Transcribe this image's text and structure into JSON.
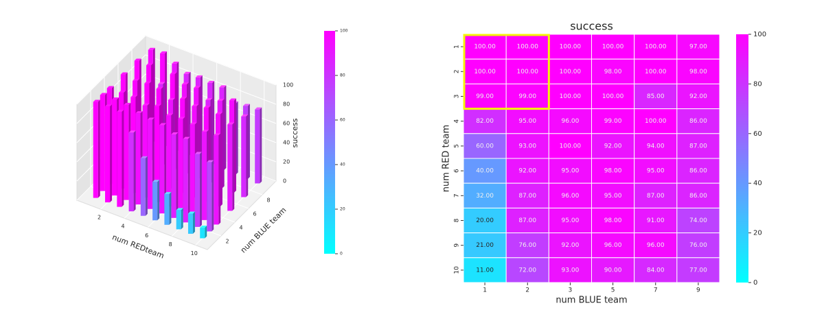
{
  "chart_data": [
    {
      "type": "bar3d",
      "x": [
        1,
        2,
        3,
        4,
        5,
        6,
        7,
        8,
        9,
        10
      ],
      "y": [
        1,
        2,
        3,
        5,
        7,
        9
      ],
      "values": [
        [
          100,
          100,
          100,
          100,
          100,
          97
        ],
        [
          100,
          100,
          100,
          98,
          100,
          98
        ],
        [
          99,
          99,
          100,
          100,
          85,
          92
        ],
        [
          82,
          95,
          96,
          99,
          100,
          86
        ],
        [
          60,
          93,
          100,
          92,
          94,
          87
        ],
        [
          40,
          92,
          95,
          98,
          95,
          86
        ],
        [
          32,
          87,
          96,
          95,
          87,
          86
        ],
        [
          20,
          87,
          95,
          98,
          91,
          74
        ],
        [
          21,
          76,
          92,
          96,
          96,
          76
        ],
        [
          11,
          72,
          93,
          90,
          84,
          77
        ]
      ],
      "xlabel": "num REDteam",
      "ylabel": "num BLUE team",
      "zlabel": "success",
      "xlim": [
        0,
        11
      ],
      "ylim": [
        0,
        10
      ],
      "zlim": [
        0,
        100
      ],
      "xticks": [
        2,
        4,
        6,
        8,
        10
      ],
      "yticks": [
        2,
        4,
        6,
        8
      ],
      "zticks": [
        0,
        20,
        40,
        60,
        80,
        100
      ],
      "cmap": "cool",
      "colorbar": {
        "lim": [
          0,
          100
        ],
        "ticks": [
          0,
          20,
          40,
          60,
          80,
          100
        ]
      }
    },
    {
      "type": "heatmap",
      "title": "success",
      "x": [
        1,
        2,
        3,
        5,
        7,
        9
      ],
      "y": [
        1,
        2,
        3,
        4,
        5,
        6,
        7,
        8,
        9,
        10
      ],
      "values": [
        [
          100,
          100,
          100,
          100,
          100,
          97
        ],
        [
          100,
          100,
          100,
          98,
          100,
          98
        ],
        [
          99,
          99,
          100,
          100,
          85,
          92
        ],
        [
          82,
          95,
          96,
          99,
          100,
          86
        ],
        [
          60,
          93,
          100,
          92,
          94,
          87
        ],
        [
          40,
          92,
          95,
          98,
          95,
          86
        ],
        [
          32,
          87,
          96,
          95,
          87,
          86
        ],
        [
          20,
          87,
          95,
          98,
          91,
          74
        ],
        [
          21,
          76,
          92,
          96,
          96,
          76
        ],
        [
          11,
          72,
          93,
          90,
          84,
          77
        ]
      ],
      "value_labels": [
        [
          "100.00",
          "100.00",
          "100.00",
          "100.00",
          "100.00",
          "97.00"
        ],
        [
          "100.00",
          "100.00",
          "100.00",
          "98.00",
          "100.00",
          "98.00"
        ],
        [
          "99.00",
          "99.00",
          "100.00",
          "100.00",
          "85.00",
          "92.00"
        ],
        [
          "82.00",
          "95.00",
          "96.00",
          "99.00",
          "100.00",
          "86.00"
        ],
        [
          "60.00",
          "93.00",
          "100.00",
          "92.00",
          "94.00",
          "87.00"
        ],
        [
          "40.00",
          "92.00",
          "95.00",
          "98.00",
          "95.00",
          "86.00"
        ],
        [
          "32.00",
          "87.00",
          "96.00",
          "95.00",
          "87.00",
          "86.00"
        ],
        [
          "20.00",
          "87.00",
          "95.00",
          "98.00",
          "91.00",
          "74.00"
        ],
        [
          "21.00",
          "76.00",
          "92.00",
          "96.00",
          "96.00",
          "76.00"
        ],
        [
          "11.00",
          "72.00",
          "93.00",
          "90.00",
          "84.00",
          "77.00"
        ]
      ],
      "xlabel": "num BLUE team",
      "ylabel": "num RED team",
      "cmap": "cool",
      "colorbar": {
        "lim": [
          0,
          100
        ],
        "ticks": [
          0,
          20,
          40,
          60,
          80,
          100
        ]
      }
    }
  ]
}
